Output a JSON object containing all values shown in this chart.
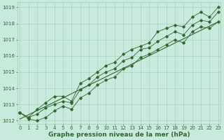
{
  "x": [
    0,
    1,
    2,
    3,
    4,
    5,
    6,
    7,
    8,
    9,
    10,
    11,
    12,
    13,
    14,
    15,
    16,
    17,
    18,
    19,
    20,
    21,
    22,
    23
  ],
  "y_main": [
    1012.5,
    1012.2,
    1012.4,
    1012.8,
    1013.0,
    1013.2,
    1013.1,
    1013.9,
    1014.2,
    1014.7,
    1015.0,
    1015.2,
    1015.7,
    1015.9,
    1016.4,
    1016.5,
    1016.9,
    1017.2,
    1017.5,
    1017.3,
    1017.9,
    1018.2,
    1018.1,
    1018.7
  ],
  "y_upper": [
    1012.5,
    1012.2,
    1012.7,
    1013.1,
    1013.5,
    1013.5,
    1013.2,
    1014.3,
    1014.6,
    1015.0,
    1015.4,
    1015.6,
    1016.1,
    1016.4,
    1016.6,
    1016.8,
    1017.5,
    1017.7,
    1017.9,
    1017.8,
    1018.4,
    1018.7,
    1018.4,
    1019.0
  ],
  "y_lower": [
    1012.5,
    1012.1,
    1012.0,
    1012.2,
    1012.6,
    1012.9,
    1012.7,
    1013.4,
    1013.7,
    1014.2,
    1014.5,
    1014.7,
    1015.2,
    1015.4,
    1015.9,
    1016.1,
    1016.4,
    1016.7,
    1017.0,
    1016.8,
    1017.5,
    1017.8,
    1017.7,
    1018.1
  ],
  "trend_x": [
    0,
    23
  ],
  "trend_y": [
    1012.1,
    1018.1
  ],
  "ylim": [
    1011.8,
    1019.3
  ],
  "xlim": [
    -0.3,
    23.3
  ],
  "yticks": [
    1012,
    1013,
    1014,
    1015,
    1016,
    1017,
    1018,
    1019
  ],
  "xticks": [
    0,
    1,
    2,
    3,
    4,
    5,
    6,
    7,
    8,
    9,
    10,
    11,
    12,
    13,
    14,
    15,
    16,
    17,
    18,
    19,
    20,
    21,
    22,
    23
  ],
  "xtick_labels": [
    "0",
    "1",
    "2",
    "3",
    "4",
    "5",
    "6",
    "7",
    "8",
    "9",
    "10",
    "11",
    "12",
    "13",
    "14",
    "15",
    "16",
    "17",
    "18",
    "19",
    "20",
    "21",
    "2 2",
    "23"
  ],
  "line_color": "#2d6a2d",
  "bg_color": "#c8eadc",
  "grid_color": "#9ecfb8",
  "xlabel": "Graphe pression niveau de la mer (hPa)",
  "xlabel_fontsize": 6.5,
  "tick_fontsize": 5.0,
  "marker": "D",
  "marker_size": 1.8,
  "linewidth": 0.6
}
